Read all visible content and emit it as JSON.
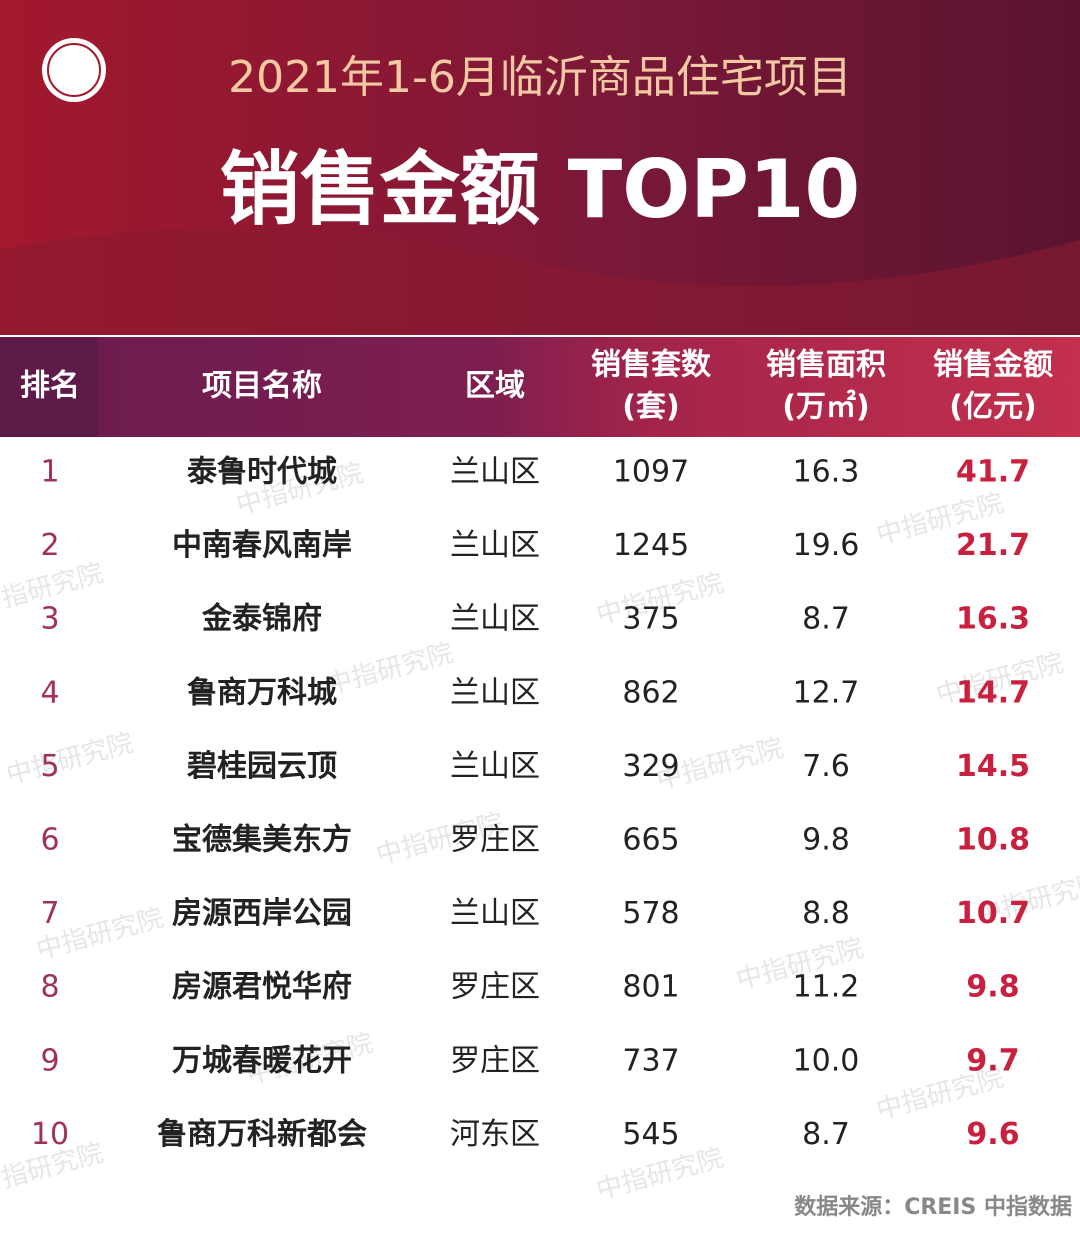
{
  "header": {
    "title": "2021年1-6月临沂商品住宅项目",
    "subtitle": "销售金额 TOP10"
  },
  "table": {
    "headers": [
      [
        "排名"
      ],
      [
        "项目名称"
      ],
      [
        "区域"
      ],
      [
        "销售套数",
        "(套)"
      ],
      [
        "销售面积",
        "(万㎡)"
      ],
      [
        "销售金额",
        "(亿元)"
      ]
    ],
    "rows": [
      [
        "1",
        "泰鲁时代城",
        "兰山区",
        "1097",
        "16.3",
        "41.7"
      ],
      [
        "2",
        "中南春风南岸",
        "兰山区",
        "1245",
        "19.6",
        "21.7"
      ],
      [
        "3",
        "金泰锦府",
        "兰山区",
        "375",
        "8.7",
        "16.3"
      ],
      [
        "4",
        "鲁商万科城",
        "兰山区",
        "862",
        "12.7",
        "14.7"
      ],
      [
        "5",
        "碧桂园云顶",
        "兰山区",
        "329",
        "7.6",
        "14.5"
      ],
      [
        "6",
        "宝德集美东方",
        "罗庄区",
        "665",
        "9.8",
        "10.8"
      ],
      [
        "7",
        "房源西岸公园",
        "兰山区",
        "578",
        "8.8",
        "10.7"
      ],
      [
        "8",
        "房源君悦华府",
        "罗庄区",
        "801",
        "11.2",
        "9.8"
      ],
      [
        "9",
        "万城春暖花开",
        "罗庄区",
        "737",
        "10.0",
        "9.7"
      ],
      [
        "10",
        "鲁商万科新都会",
        "河东区",
        "545",
        "8.7",
        "9.6"
      ]
    ]
  },
  "watermark": "中指研究院",
  "source": "数据来源：CREIS 中指数据"
}
